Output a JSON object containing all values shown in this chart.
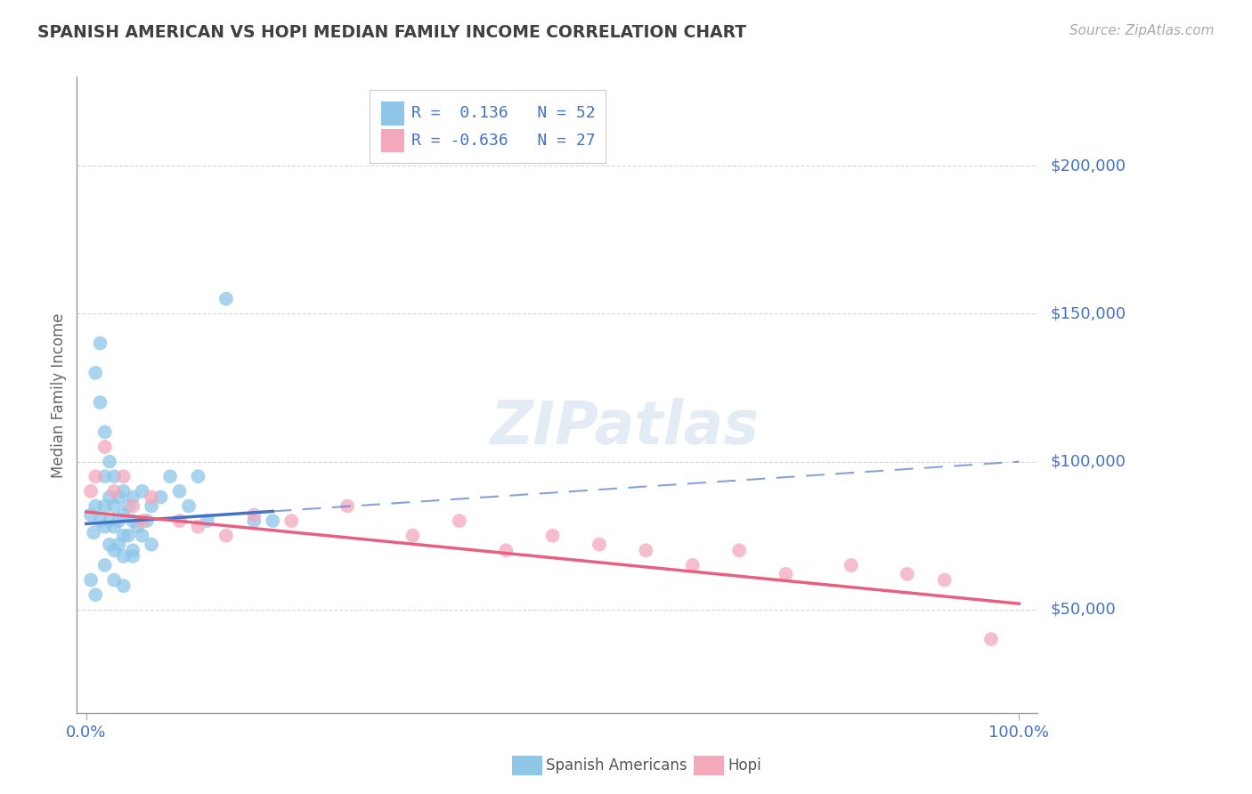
{
  "title": "SPANISH AMERICAN VS HOPI MEDIAN FAMILY INCOME CORRELATION CHART",
  "source": "Source: ZipAtlas.com",
  "ylabel": "Median Family Income",
  "watermark": "ZIPatlas",
  "legend_blue_r": "R =  0.136",
  "legend_blue_n": "N = 52",
  "legend_pink_r": "R = -0.636",
  "legend_pink_n": "N = 27",
  "bottom_legend_blue": "Spanish Americans",
  "bottom_legend_pink": "Hopi",
  "blue_color": "#8ec6e8",
  "pink_color": "#f4a8bc",
  "blue_line_color": "#4472c4",
  "pink_line_color": "#e86080",
  "axis_label_color": "#4472c4",
  "title_color": "#404040",
  "grid_color": "#cccccc",
  "background_color": "#ffffff",
  "ylim_min": 15000,
  "ylim_max": 230000,
  "xlim_min": -0.01,
  "xlim_max": 1.02,
  "yticks": [
    50000,
    100000,
    150000,
    200000
  ],
  "ytick_labels": [
    "$50,000",
    "$100,000",
    "$150,000",
    "$200,000"
  ],
  "spanish_x": [
    0.005,
    0.008,
    0.01,
    0.01,
    0.015,
    0.015,
    0.015,
    0.02,
    0.02,
    0.02,
    0.02,
    0.025,
    0.025,
    0.025,
    0.025,
    0.03,
    0.03,
    0.03,
    0.03,
    0.035,
    0.035,
    0.035,
    0.04,
    0.04,
    0.04,
    0.04,
    0.045,
    0.045,
    0.05,
    0.05,
    0.05,
    0.055,
    0.06,
    0.06,
    0.065,
    0.07,
    0.07,
    0.08,
    0.09,
    0.1,
    0.11,
    0.12,
    0.13,
    0.15,
    0.18,
    0.2,
    0.005,
    0.01,
    0.02,
    0.03,
    0.04,
    0.05
  ],
  "spanish_y": [
    82000,
    76000,
    130000,
    85000,
    140000,
    120000,
    80000,
    110000,
    95000,
    85000,
    78000,
    100000,
    88000,
    80000,
    72000,
    95000,
    85000,
    78000,
    70000,
    88000,
    80000,
    72000,
    90000,
    82000,
    75000,
    68000,
    85000,
    75000,
    88000,
    80000,
    70000,
    78000,
    90000,
    75000,
    80000,
    85000,
    72000,
    88000,
    95000,
    90000,
    85000,
    95000,
    80000,
    155000,
    80000,
    80000,
    60000,
    55000,
    65000,
    60000,
    58000,
    68000
  ],
  "hopi_x": [
    0.005,
    0.01,
    0.02,
    0.03,
    0.04,
    0.05,
    0.06,
    0.07,
    0.1,
    0.12,
    0.15,
    0.18,
    0.22,
    0.28,
    0.35,
    0.4,
    0.45,
    0.5,
    0.55,
    0.6,
    0.65,
    0.7,
    0.75,
    0.82,
    0.88,
    0.92,
    0.97
  ],
  "hopi_y": [
    90000,
    95000,
    105000,
    90000,
    95000,
    85000,
    80000,
    88000,
    80000,
    78000,
    75000,
    82000,
    80000,
    85000,
    75000,
    80000,
    70000,
    75000,
    72000,
    70000,
    65000,
    70000,
    62000,
    65000,
    62000,
    60000,
    40000
  ],
  "blue_line_x0": 0.0,
  "blue_line_x_solid_end": 0.2,
  "blue_line_x1": 1.0,
  "blue_line_y0": 79000,
  "blue_line_y1": 100000,
  "pink_line_x0": 0.0,
  "pink_line_x1": 1.0,
  "pink_line_y0": 83000,
  "pink_line_y1": 52000
}
